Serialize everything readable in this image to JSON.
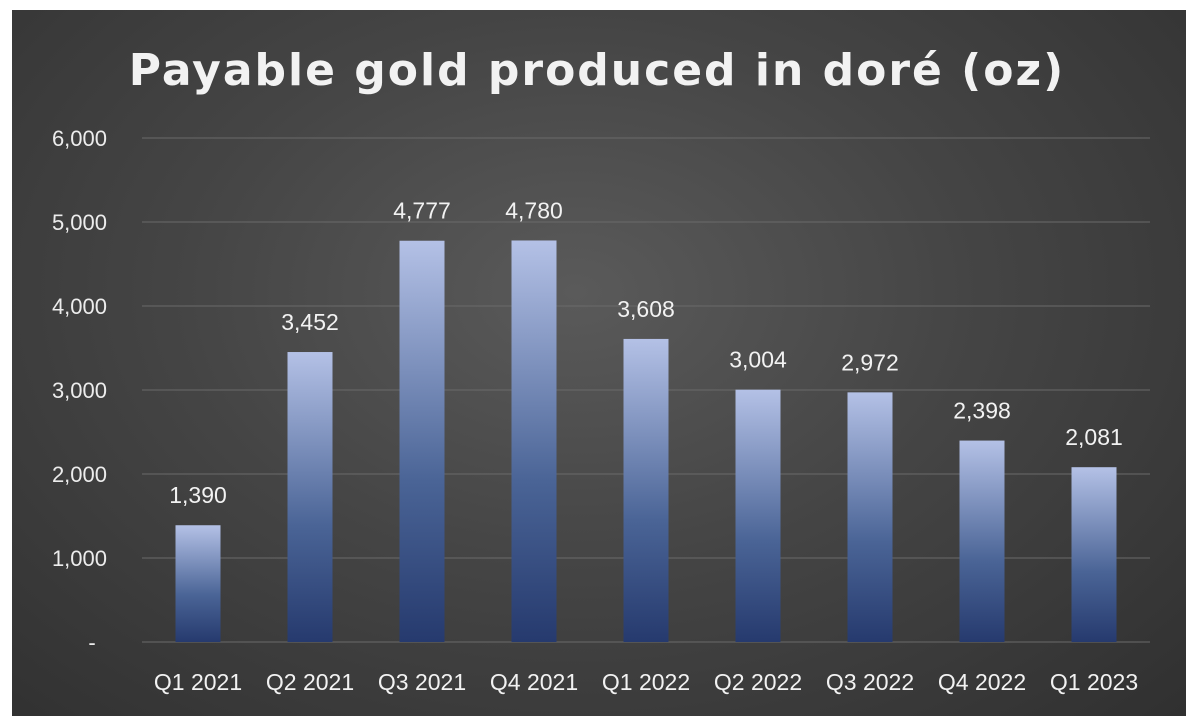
{
  "chart_data": {
    "type": "bar",
    "title": "Payable gold produced in doré (oz)",
    "categories": [
      "Q1 2021",
      "Q2 2021",
      "Q3 2021",
      "Q4 2021",
      "Q1 2022",
      "Q2 2022",
      "Q3 2022",
      "Q4 2022",
      "Q1 2023"
    ],
    "values": [
      1390,
      3452,
      4777,
      4780,
      3608,
      3004,
      2972,
      2398,
      2081
    ],
    "value_labels": [
      "1,390",
      "3,452",
      "4,777",
      "4,780",
      "3,608",
      "3,004",
      "2,972",
      "2,398",
      "2,081"
    ],
    "y_ticks": [
      0,
      1000,
      2000,
      3000,
      4000,
      5000,
      6000
    ],
    "y_tick_labels": [
      "-",
      "1,000",
      "2,000",
      "3,000",
      "4,000",
      "5,000",
      "6,000"
    ],
    "ylim": [
      0,
      6000
    ],
    "xlabel": "",
    "ylabel": "",
    "grid": true,
    "legend": "none",
    "colors": {
      "background_center": "#5a5a5a",
      "background_edge": "#303030",
      "bar_top": "#b4c1e6",
      "bar_mid": "#4a6496",
      "bar_bottom": "#263a6e",
      "text": "#f2f2f2",
      "grid": "#6a6a6a"
    }
  }
}
